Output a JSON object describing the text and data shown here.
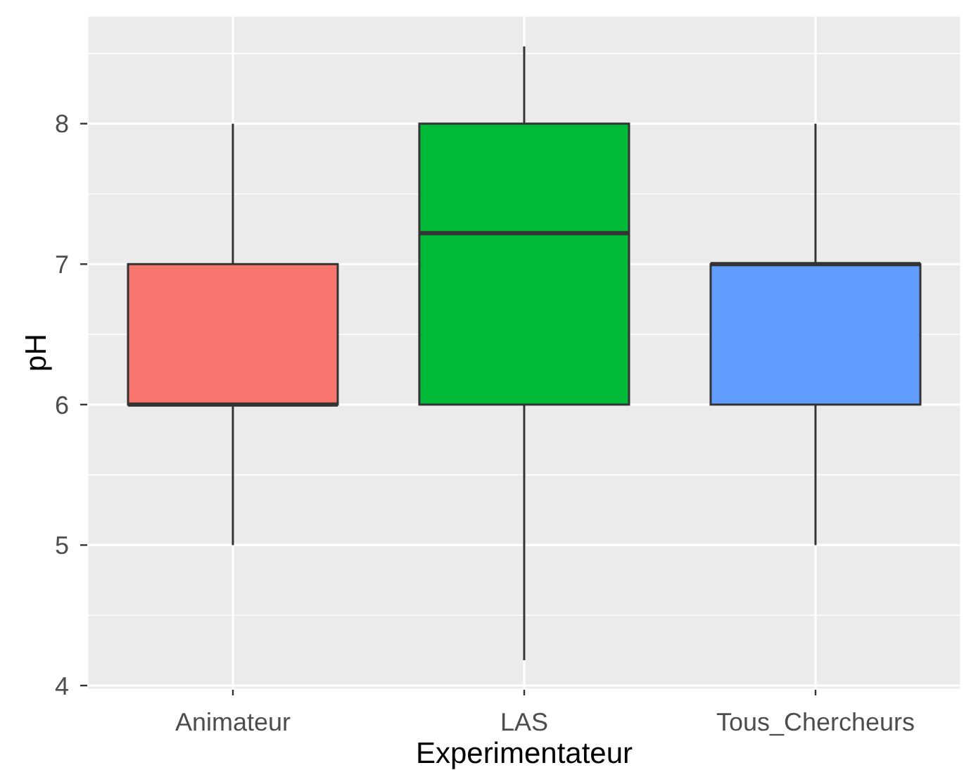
{
  "chart_data": {
    "type": "box",
    "categories": [
      "Animateur",
      "LAS",
      "Tous_Chercheurs"
    ],
    "boxes": [
      {
        "low": 5,
        "q1": 6,
        "median": 6,
        "q3": 7,
        "high": 8
      },
      {
        "low": 4.18,
        "q1": 6,
        "median": 7.22,
        "q3": 8,
        "high": 8.55
      },
      {
        "low": 5,
        "q1": 6,
        "median": 7,
        "q3": 7,
        "high": 8
      }
    ],
    "colors": [
      "#f8766d",
      "#00ba38",
      "#619cff"
    ],
    "xlabel": "Experimentateur",
    "ylabel": "pH",
    "ylim": [
      3.97,
      8.77
    ],
    "yticks": [
      4,
      5,
      6,
      7,
      8
    ],
    "grid": true
  }
}
